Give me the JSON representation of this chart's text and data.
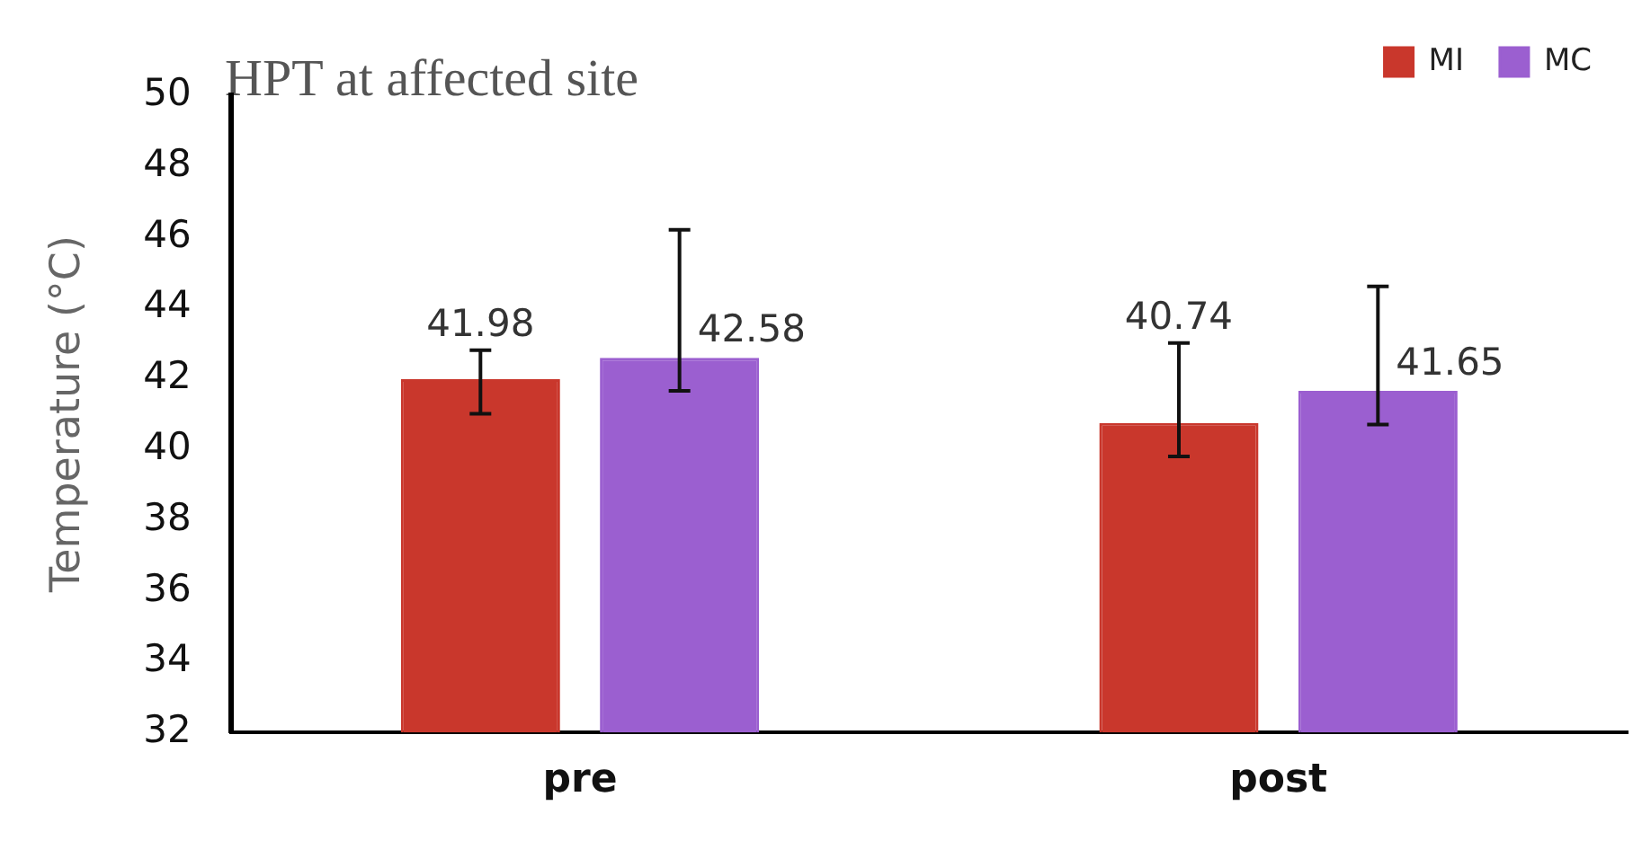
{
  "chart_data": {
    "type": "bar",
    "title": "HPT at affected site",
    "ylabel": "Temperature (°C)",
    "categories": [
      "pre",
      "post"
    ],
    "series": [
      {
        "name": "MI",
        "color": "#c9372c",
        "values": [
          41.98,
          40.74
        ],
        "errors": [
          [
            41.0,
            42.8
          ],
          [
            39.8,
            43.0
          ]
        ]
      },
      {
        "name": "MC",
        "color": "#9b5fd0",
        "values": [
          42.58,
          41.65
        ],
        "errors": [
          [
            41.65,
            46.2
          ],
          [
            40.7,
            44.6
          ]
        ]
      }
    ],
    "ylim": [
      32,
      50
    ],
    "yticks": [
      32,
      34,
      36,
      38,
      40,
      42,
      44,
      46,
      48,
      50
    ],
    "grid": false,
    "legend": "top right",
    "data_labels": true
  }
}
